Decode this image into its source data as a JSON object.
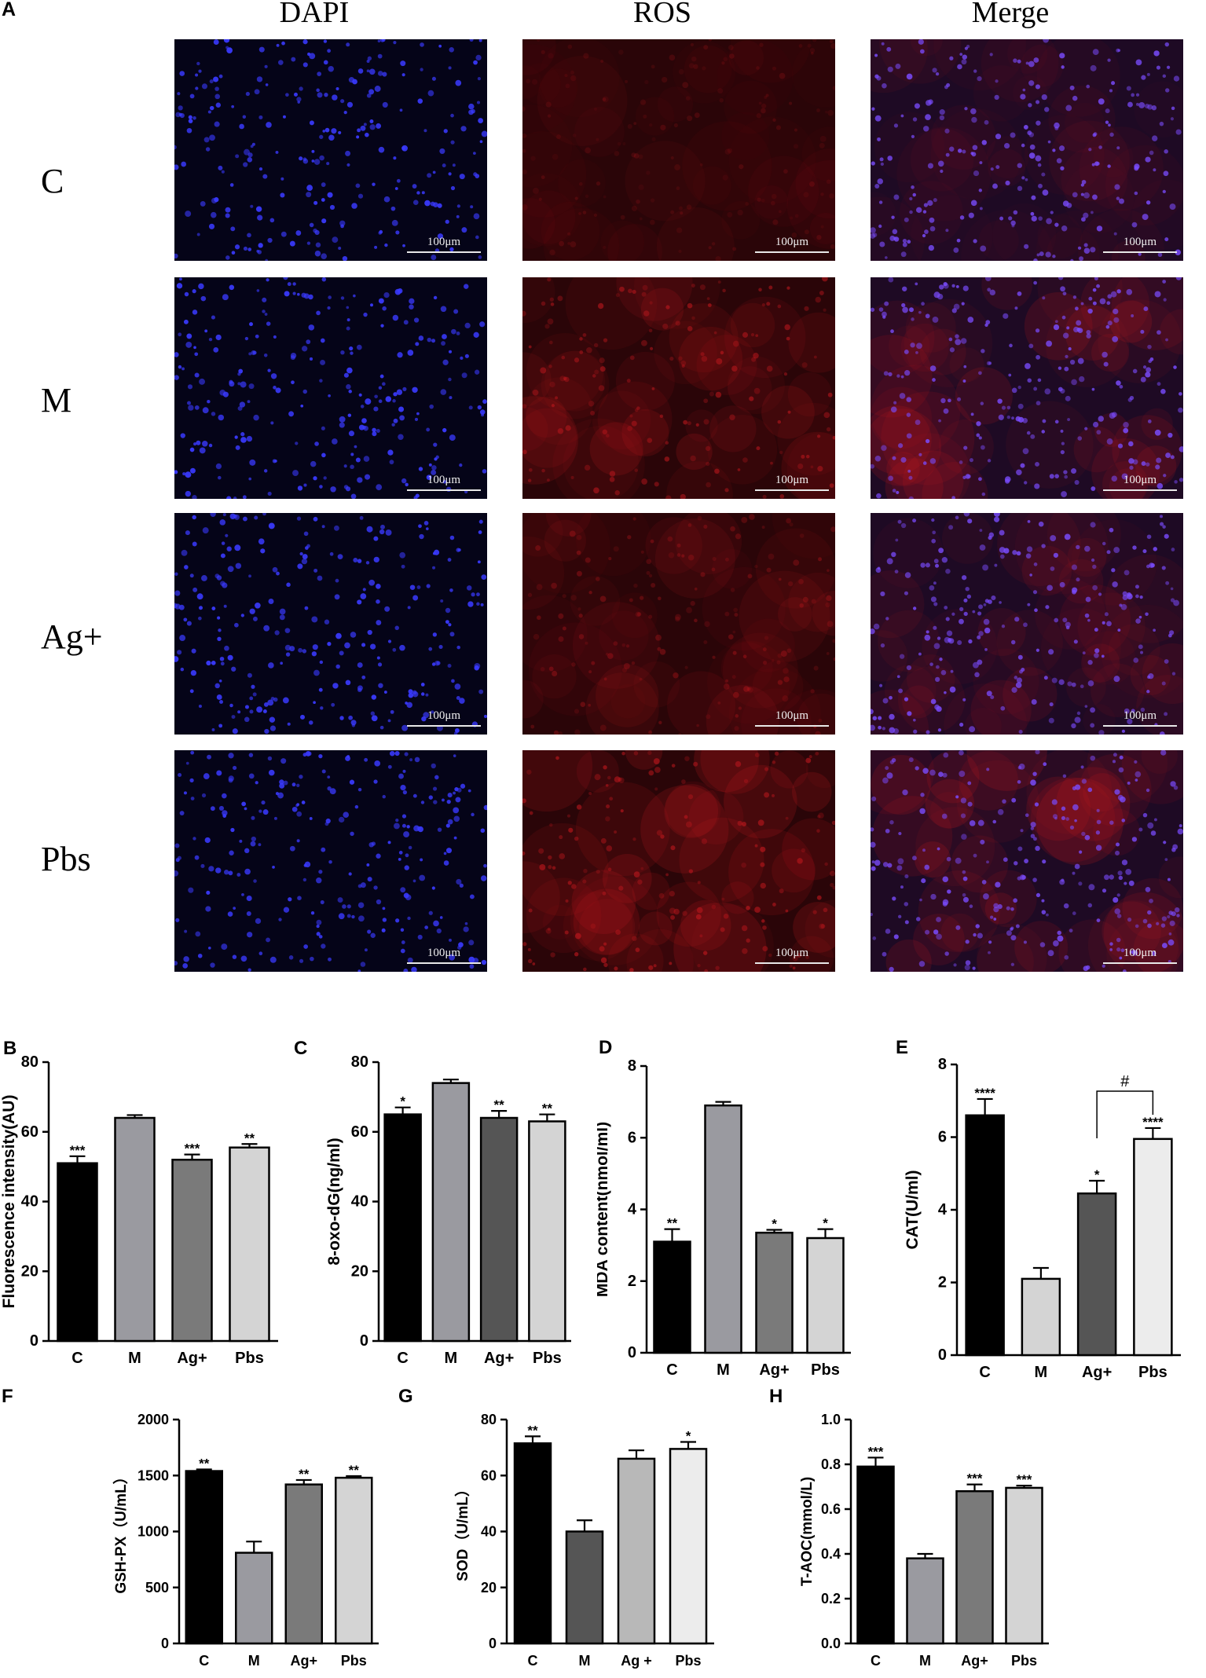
{
  "panel_a": {
    "letter": "A",
    "columns": [
      "DAPI",
      "ROS",
      "Merge"
    ],
    "rows": [
      "C",
      "M",
      "Ag+",
      "Pbs"
    ],
    "scale_bar": "100μm",
    "colors": {
      "dapi_bg": "#050418",
      "nuclei": "#3a3aff",
      "ros_bg": "#2a0508",
      "ros_spot": "#c0181e",
      "merge_nuclei": "#7a4cff"
    }
  },
  "chart_data": [
    {
      "panel": "B",
      "type": "bar",
      "categories": [
        "C",
        "M",
        "Ag+",
        "Pbs"
      ],
      "values": [
        51,
        64,
        52,
        55.5
      ],
      "errors": [
        2,
        0.8,
        1.5,
        1
      ],
      "sig": [
        "***",
        "",
        "***",
        "**"
      ],
      "ylabel": "Fluorescence intensity(AU)",
      "ylim": [
        0,
        80
      ],
      "yticks": [
        0,
        20,
        40,
        60,
        80
      ],
      "colors": [
        "#000000",
        "#9a9aa0",
        "#7a7a7a",
        "#d4d4d4"
      ]
    },
    {
      "panel": "C",
      "type": "bar",
      "categories": [
        "C",
        "M",
        "Ag+",
        "Pbs"
      ],
      "values": [
        65,
        74,
        64,
        63
      ],
      "errors": [
        2,
        1,
        2,
        2
      ],
      "sig": [
        "*",
        "",
        "**",
        "**"
      ],
      "ylabel": "8-oxo-dG(ng/ml)",
      "ylim": [
        0,
        80
      ],
      "yticks": [
        0,
        20,
        40,
        60,
        80
      ],
      "colors": [
        "#000000",
        "#9a9aa0",
        "#555555",
        "#d4d4d4"
      ]
    },
    {
      "panel": "D",
      "type": "bar",
      "categories": [
        "C",
        "M",
        "Ag+",
        "Pbs"
      ],
      "values": [
        3.1,
        6.9,
        3.35,
        3.2
      ],
      "errors": [
        0.35,
        0.1,
        0.08,
        0.25
      ],
      "sig": [
        "**",
        "",
        "*",
        "*"
      ],
      "ylabel": "MDA content(nmol/ml)",
      "ylim": [
        0,
        8
      ],
      "yticks": [
        0,
        2,
        4,
        6,
        8
      ],
      "colors": [
        "#000000",
        "#9a9aa0",
        "#7a7a7a",
        "#d4d4d4"
      ]
    },
    {
      "panel": "E",
      "type": "bar",
      "categories": [
        "C",
        "M",
        "Ag+",
        "Pbs"
      ],
      "values": [
        6.6,
        2.1,
        4.45,
        5.95
      ],
      "errors": [
        0.45,
        0.3,
        0.35,
        0.3
      ],
      "sig": [
        "****",
        "",
        "*",
        "****"
      ],
      "bracket": {
        "from": 2,
        "to": 3,
        "label": "#"
      },
      "ylabel": "CAT(U/ml)",
      "ylim": [
        0,
        8
      ],
      "yticks": [
        0,
        2,
        4,
        6,
        8
      ],
      "colors": [
        "#000000",
        "#d4d4d4",
        "#555555",
        "#ececec"
      ]
    },
    {
      "panel": "F",
      "type": "bar",
      "categories": [
        "C",
        "M",
        "Ag+",
        "Pbs"
      ],
      "values": [
        1540,
        810,
        1420,
        1480
      ],
      "errors": [
        15,
        100,
        40,
        15
      ],
      "sig": [
        "**",
        "",
        "**",
        "**"
      ],
      "ylabel": "GSH-PX（U/mL）",
      "ylim": [
        0,
        2000
      ],
      "yticks": [
        0,
        500,
        1000,
        1500,
        2000
      ],
      "colors": [
        "#000000",
        "#9a9aa0",
        "#7a7a7a",
        "#d4d4d4"
      ]
    },
    {
      "panel": "G",
      "type": "bar",
      "categories": [
        "C",
        "M",
        "Ag +",
        "Pbs"
      ],
      "values": [
        71.5,
        40,
        66,
        69.5
      ],
      "errors": [
        2.5,
        4,
        3,
        2.5
      ],
      "sig": [
        "**",
        "",
        "",
        "*"
      ],
      "ylabel": "SOD（U/mL）",
      "ylim": [
        0,
        80
      ],
      "yticks": [
        0,
        20,
        40,
        60,
        80
      ],
      "colors": [
        "#000000",
        "#555555",
        "#b8b8b8",
        "#ececec"
      ]
    },
    {
      "panel": "H",
      "type": "bar",
      "categories": [
        "C",
        "M",
        "Ag+",
        "Pbs"
      ],
      "values": [
        0.79,
        0.38,
        0.68,
        0.695
      ],
      "errors": [
        0.04,
        0.02,
        0.03,
        0.01
      ],
      "sig": [
        "***",
        "",
        "***",
        "***"
      ],
      "ylabel": "T-AOC(mmol/L)",
      "ylim": [
        0,
        1.0
      ],
      "yticks": [
        0.0,
        0.2,
        0.4,
        0.6,
        0.8,
        1.0
      ],
      "colors": [
        "#000000",
        "#9a9aa0",
        "#7a7a7a",
        "#d4d4d4"
      ]
    }
  ]
}
